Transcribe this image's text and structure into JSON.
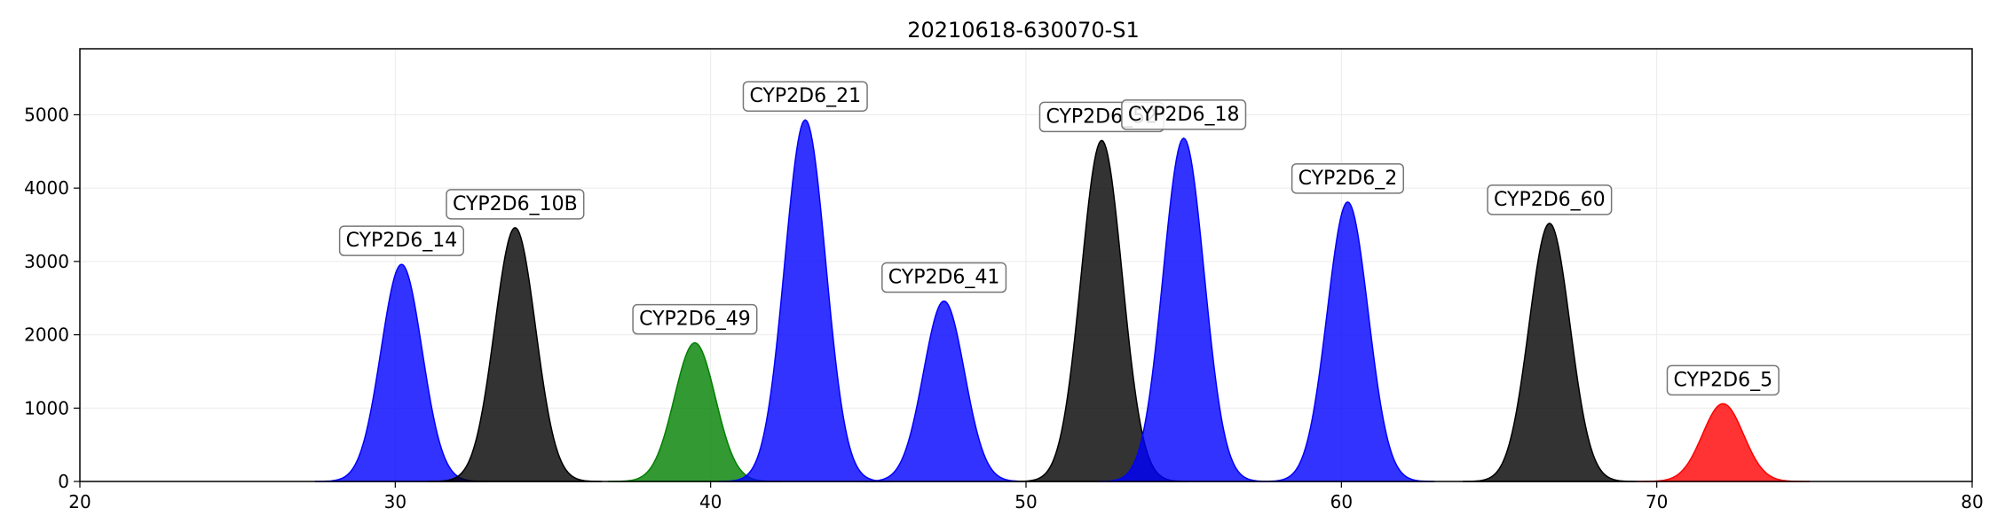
{
  "chart_data": {
    "type": "area",
    "title": "20210618-630070-S1",
    "xlabel": "",
    "ylabel": "",
    "xlim": [
      20,
      80
    ],
    "ylim": [
      0,
      5900
    ],
    "xticks": [
      20,
      30,
      40,
      50,
      60,
      70,
      80
    ],
    "yticks": [
      0,
      1000,
      2000,
      3000,
      4000,
      5000
    ],
    "grid": true,
    "peak_shape": "gaussian",
    "series": [
      {
        "name": "CYP2D6_14",
        "center": 30.2,
        "height": 2960,
        "sigma": 0.65,
        "color": "#0000ff"
      },
      {
        "name": "CYP2D6_10B",
        "center": 33.8,
        "height": 3460,
        "sigma": 0.65,
        "color": "#000000"
      },
      {
        "name": "CYP2D6_49",
        "center": 39.5,
        "height": 1890,
        "sigma": 0.65,
        "color": "#008000"
      },
      {
        "name": "CYP2D6_21",
        "center": 43.0,
        "height": 4930,
        "sigma": 0.65,
        "color": "#0000ff"
      },
      {
        "name": "CYP2D6_41",
        "center": 47.4,
        "height": 2460,
        "sigma": 0.65,
        "color": "#0000ff"
      },
      {
        "name": "CYP2D6_52",
        "center": 52.4,
        "height": 4650,
        "sigma": 0.65,
        "color": "#000000"
      },
      {
        "name": "CYP2D6_18",
        "center": 55.0,
        "height": 4680,
        "sigma": 0.65,
        "color": "#0000ff"
      },
      {
        "name": "CYP2D6_2",
        "center": 60.2,
        "height": 3810,
        "sigma": 0.65,
        "color": "#0000ff"
      },
      {
        "name": "CYP2D6_60",
        "center": 66.6,
        "height": 3520,
        "sigma": 0.65,
        "color": "#000000"
      },
      {
        "name": "CYP2D6_5",
        "center": 72.1,
        "height": 1060,
        "sigma": 0.65,
        "color": "#ff0000"
      }
    ]
  }
}
